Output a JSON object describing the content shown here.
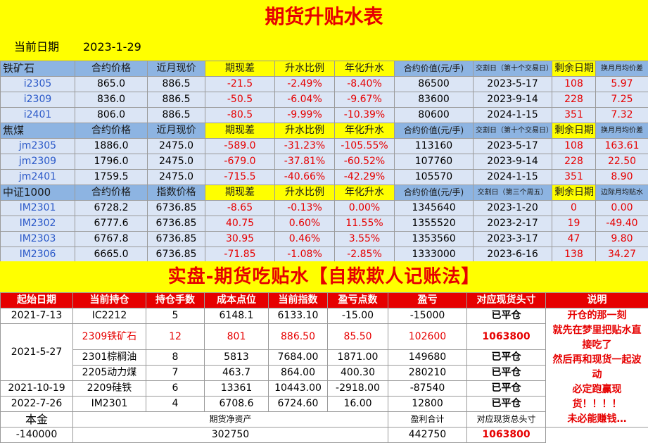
{
  "title": "期货升贴水表",
  "date_label": "当前日期",
  "date_value": "2023-1-29",
  "sections": [
    {
      "headers": [
        "铁矿石",
        "合约价格",
        "近月现价",
        "期现差",
        "升水比例",
        "年化升水",
        "合约价值(元/手)",
        "交割日（第十个交易日）",
        "剩余日期",
        "换月月均价差"
      ],
      "rows": [
        [
          "i2305",
          "865.0",
          "886.5",
          "-21.5",
          "-2.49%",
          "-8.40%",
          "86500",
          "2023-5-17",
          "108",
          "5.97"
        ],
        [
          "i2309",
          "836.0",
          "886.5",
          "-50.5",
          "-6.04%",
          "-9.67%",
          "83600",
          "2023-9-14",
          "228",
          "7.25"
        ],
        [
          "i2401",
          "806.0",
          "886.5",
          "-80.5",
          "-9.99%",
          "-10.39%",
          "80600",
          "2024-1-15",
          "351",
          "7.32"
        ]
      ]
    },
    {
      "headers": [
        "焦煤",
        "合约价格",
        "近月现价",
        "期现差",
        "升水比例",
        "年化升水",
        "合约价值(元/手)",
        "交割日（第十个交易日）",
        "剩余日期",
        "换月月均价差"
      ],
      "rows": [
        [
          "jm2305",
          "1886.0",
          "2475.0",
          "-589.0",
          "-31.23%",
          "-105.55%",
          "113160",
          "2023-5-17",
          "108",
          "163.61"
        ],
        [
          "jm2309",
          "1796.0",
          "2475.0",
          "-679.0",
          "-37.81%",
          "-60.52%",
          "107760",
          "2023-9-14",
          "228",
          "22.50"
        ],
        [
          "jm2401",
          "1759.5",
          "2475.0",
          "-715.5",
          "-40.66%",
          "-42.29%",
          "105570",
          "2024-1-15",
          "351",
          "8.90"
        ]
      ]
    },
    {
      "headers": [
        "中证1000",
        "合约价格",
        "指数价格",
        "期现差",
        "升水比例",
        "年化升水",
        "合约价值(元/手)",
        "交割日（第三个周五）",
        "剩余日期",
        "边际月均贴水"
      ],
      "rows": [
        [
          "IM2301",
          "6728.2",
          "6736.85",
          "-8.65",
          "-0.13%",
          "0.00%",
          "1345640",
          "2023-1-20",
          "0",
          "0.00"
        ],
        [
          "IM2302",
          "6777.6",
          "6736.85",
          "40.75",
          "0.60%",
          "11.55%",
          "1355520",
          "2023-2-17",
          "19",
          "-49.40"
        ],
        [
          "IM2303",
          "6767.8",
          "6736.85",
          "30.95",
          "0.46%",
          "3.55%",
          "1353560",
          "2023-3-17",
          "47",
          "9.80"
        ],
        [
          "IM2306",
          "6665.0",
          "6736.85",
          "-71.85",
          "-1.08%",
          "-2.85%",
          "1333000",
          "2023-6-16",
          "138",
          "34.27"
        ]
      ]
    }
  ],
  "title2": "实盘-期货吃贴水【自欺欺人记账法】",
  "records_headers": [
    "起始日期",
    "当前持仓",
    "持仓手数",
    "成本点位",
    "当前指数",
    "盈亏点数",
    "盈亏",
    "对应现货头寸",
    "说明"
  ],
  "records": [
    {
      "date": "2021-7-13",
      "pos": "IC2212",
      "qty": "5",
      "cost": "6148.1",
      "cur": "6133.10",
      "pts": "-15.00",
      "pnl": "-15000",
      "spot": "已平仓"
    },
    {
      "date": "2021-5-27",
      "pos": "2309铁矿石",
      "qty": "12",
      "cost": "801",
      "cur": "886.50",
      "pts": "85.50",
      "pnl": "102600",
      "spot": "1063800"
    },
    {
      "date": "",
      "pos": "2301棕榈油",
      "qty": "8",
      "cost": "5813",
      "cur": "7684.00",
      "pts": "1871.00",
      "pnl": "149680",
      "spot": "已平仓"
    },
    {
      "date": "",
      "pos": "2205动力煤",
      "qty": "7",
      "cost": "463.7",
      "cur": "864.00",
      "pts": "400.30",
      "pnl": "280210",
      "spot": "已平仓"
    },
    {
      "date": "2021-10-19",
      "pos": "2209硅铁",
      "qty": "6",
      "cost": "13361",
      "cur": "10443.00",
      "pts": "-2918.00",
      "pnl": "-87540",
      "spot": "已平仓"
    },
    {
      "date": "2022-7-26",
      "pos": "IM2301",
      "qty": "4",
      "cost": "6708.6",
      "cur": "6724.60",
      "pts": "16.00",
      "pnl": "12800",
      "spot": "已平仓"
    }
  ],
  "note_lines": [
    "开仓的那一刻",
    "就先在梦里把贴水直接吃了",
    "然后再和现货一起波动",
    "必定跑赢现货！！！！",
    "未必能赚钱…"
  ],
  "footer": {
    "labels": [
      "本金",
      "期货净资产",
      "盈利合计",
      "对应现货总头寸"
    ],
    "values": [
      "-140000",
      "302750",
      "442750",
      "1063800"
    ]
  },
  "colors": {
    "banner_bg": "#ffff00",
    "red": "#e60000",
    "header_blue": "#8db4e2",
    "row_blue": "#dbe5f5",
    "link_blue": "#2a58c8"
  }
}
